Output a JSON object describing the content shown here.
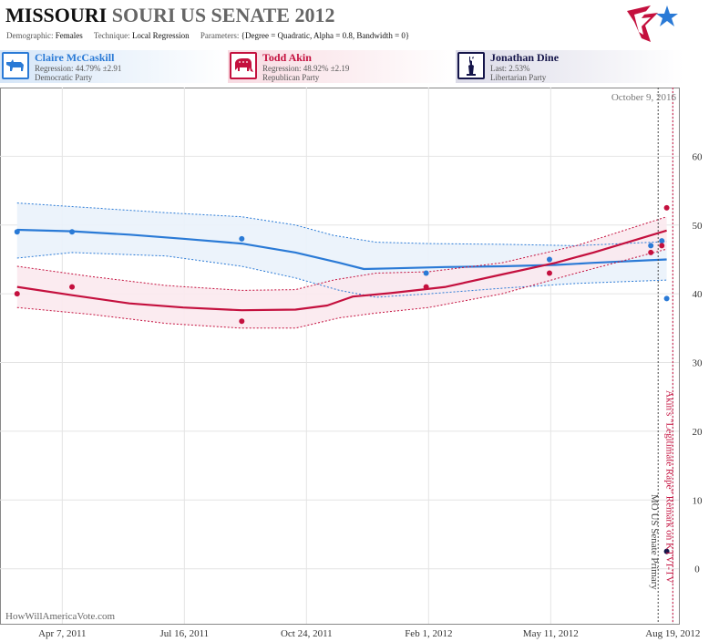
{
  "header": {
    "title_state": "MISSOURI",
    "title_rest": "SOURI US SENATE 2012",
    "params": [
      {
        "label": "Demographic:",
        "value": "Females"
      },
      {
        "label": "Technique:",
        "value": "Local Regression"
      },
      {
        "label": "Parameters:",
        "value": "{Degree = Quadratic, Alpha = 0.8, Bandwidth = 0}"
      }
    ]
  },
  "candidates": [
    {
      "name": "Claire McCaskill",
      "line1": "Regression: 44.79% ±2.91",
      "line2": "Democratic Party",
      "icon": "donkey-icon",
      "color": "#2a7ad6"
    },
    {
      "name": "Todd Akin",
      "line1": "Regression: 48.92% ±2.19",
      "line2": "Republican Party",
      "icon": "elephant-icon",
      "color": "#c4103e"
    },
    {
      "name": "Jonathan Dine",
      "line1": "Last: 2.53%",
      "line2": "Libertarian Party",
      "icon": "statue-of-liberty-icon",
      "color": "#15154a"
    }
  ],
  "watermark": "HowWillAmericaVote.com",
  "chart_data": {
    "type": "scatter",
    "x_ticks": [
      "Apr 7, 2011",
      "Jul 16, 2011",
      "Oct 24, 2011",
      "Feb 1, 2012",
      "May 11, 2012",
      "Aug 19, 2012"
    ],
    "x_range": [
      "2011-02-15",
      "2012-08-24"
    ],
    "ylim": [
      -8,
      70
    ],
    "y_ticks": [
      0,
      10,
      20,
      30,
      40,
      50,
      60
    ],
    "date_annotation": "October 9, 2016",
    "events": [
      {
        "date": "2012-08-07",
        "label": "MO US Senate Primary",
        "color": "#444444"
      },
      {
        "date": "2012-08-19",
        "label": "Akin's \"Legitimate Rape\" Remark on KTVI-TV",
        "color": "#c4103e"
      }
    ],
    "series": [
      {
        "name": "Claire McCaskill",
        "color": "#2a7ad6",
        "band_fill": "#eaf2fb",
        "points": [
          [
            "2011-03-01",
            49.0
          ],
          [
            "2011-04-15",
            49.0
          ],
          [
            "2011-09-01",
            48.0
          ],
          [
            "2012-01-30",
            43.0
          ],
          [
            "2012-05-10",
            45.0
          ],
          [
            "2012-08-01",
            47.0
          ],
          [
            "2012-08-10",
            47.7
          ],
          [
            "2012-08-14",
            39.3
          ]
        ],
        "fit": [
          [
            "2011-03-01",
            49.3
          ],
          [
            "2011-04-15",
            49.1
          ],
          [
            "2011-06-01",
            48.6
          ],
          [
            "2011-07-15",
            48.0
          ],
          [
            "2011-09-01",
            47.3
          ],
          [
            "2011-10-15",
            46.0
          ],
          [
            "2011-11-20",
            44.5
          ],
          [
            "2011-12-10",
            43.6
          ],
          [
            "2012-01-01",
            43.7
          ],
          [
            "2012-02-15",
            43.9
          ],
          [
            "2012-04-01",
            44.0
          ],
          [
            "2012-05-15",
            44.2
          ],
          [
            "2012-06-15",
            44.5
          ],
          [
            "2012-08-14",
            45.0
          ]
        ],
        "upper": [
          [
            "2011-03-01",
            53.2
          ],
          [
            "2011-05-01",
            52.5
          ],
          [
            "2011-07-01",
            51.8
          ],
          [
            "2011-09-01",
            51.2
          ],
          [
            "2011-10-15",
            50.0
          ],
          [
            "2011-11-15",
            48.5
          ],
          [
            "2011-12-20",
            47.5
          ],
          [
            "2012-02-01",
            47.3
          ],
          [
            "2012-04-01",
            47.2
          ],
          [
            "2012-06-01",
            47.0
          ],
          [
            "2012-08-14",
            47.6
          ]
        ],
        "lower": [
          [
            "2011-03-01",
            45.2
          ],
          [
            "2011-04-15",
            46.0
          ],
          [
            "2011-07-01",
            45.5
          ],
          [
            "2011-09-01",
            44.0
          ],
          [
            "2011-10-15",
            42.3
          ],
          [
            "2011-11-20",
            40.5
          ],
          [
            "2011-12-20",
            39.5
          ],
          [
            "2012-02-01",
            40.0
          ],
          [
            "2012-04-01",
            40.8
          ],
          [
            "2012-06-01",
            41.5
          ],
          [
            "2012-08-14",
            42.0
          ]
        ]
      },
      {
        "name": "Todd Akin",
        "color": "#c4103e",
        "band_fill": "#fbe9ee",
        "points": [
          [
            "2011-03-01",
            40.0
          ],
          [
            "2011-04-15",
            41.0
          ],
          [
            "2011-09-01",
            36.0
          ],
          [
            "2012-01-30",
            41.0
          ],
          [
            "2012-05-10",
            43.0
          ],
          [
            "2012-08-01",
            46.0
          ],
          [
            "2012-08-10",
            47.0
          ],
          [
            "2012-08-14",
            52.5
          ]
        ],
        "fit": [
          [
            "2011-03-01",
            41.0
          ],
          [
            "2011-04-15",
            39.8
          ],
          [
            "2011-06-01",
            38.6
          ],
          [
            "2011-07-15",
            38.0
          ],
          [
            "2011-09-01",
            37.6
          ],
          [
            "2011-10-15",
            37.7
          ],
          [
            "2011-11-10",
            38.3
          ],
          [
            "2011-12-01",
            39.6
          ],
          [
            "2012-01-01",
            40.1
          ],
          [
            "2012-02-15",
            41.0
          ],
          [
            "2012-04-01",
            42.8
          ],
          [
            "2012-05-15",
            44.5
          ],
          [
            "2012-06-15",
            46.0
          ],
          [
            "2012-08-14",
            49.2
          ]
        ],
        "upper": [
          [
            "2011-03-01",
            44.0
          ],
          [
            "2011-05-01",
            42.5
          ],
          [
            "2011-07-01",
            41.2
          ],
          [
            "2011-09-01",
            40.5
          ],
          [
            "2011-10-15",
            40.6
          ],
          [
            "2011-11-15",
            42.0
          ],
          [
            "2011-12-20",
            43.0
          ],
          [
            "2012-02-01",
            43.2
          ],
          [
            "2012-04-01",
            44.5
          ],
          [
            "2012-06-01",
            47.0
          ],
          [
            "2012-08-14",
            51.2
          ]
        ],
        "lower": [
          [
            "2011-03-01",
            38.0
          ],
          [
            "2011-05-01",
            37.0
          ],
          [
            "2011-07-01",
            35.7
          ],
          [
            "2011-09-01",
            35.0
          ],
          [
            "2011-10-15",
            35.0
          ],
          [
            "2011-11-20",
            36.5
          ],
          [
            "2011-12-20",
            37.2
          ],
          [
            "2012-02-01",
            38.0
          ],
          [
            "2012-04-01",
            40.0
          ],
          [
            "2012-06-01",
            43.0
          ],
          [
            "2012-08-14",
            46.5
          ]
        ]
      },
      {
        "name": "Jonathan Dine",
        "color": "#15154a",
        "points": [
          [
            "2012-08-14",
            2.53
          ]
        ]
      }
    ]
  }
}
